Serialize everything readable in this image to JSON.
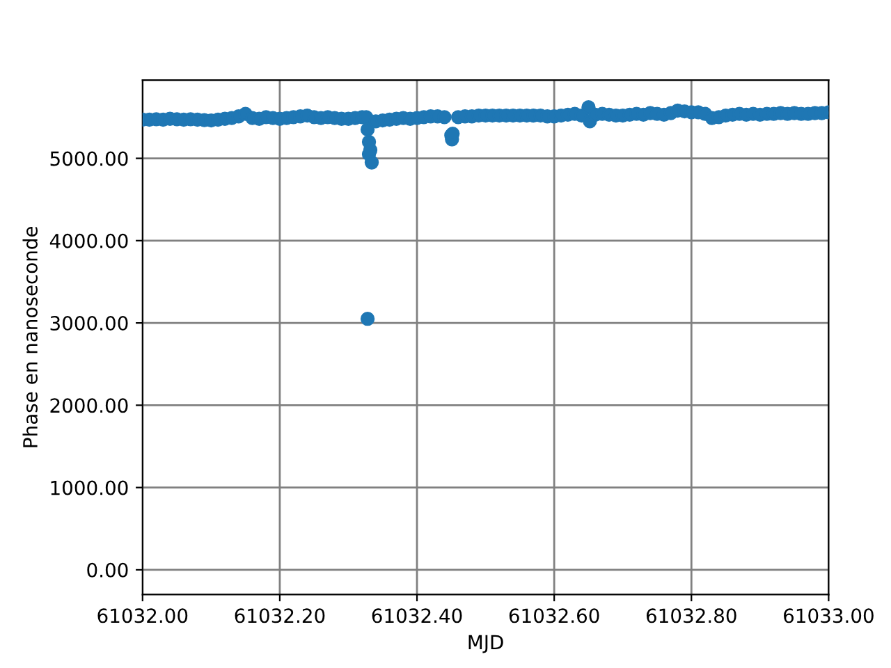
{
  "chart_data": {
    "type": "scatter",
    "xlabel": "MJD",
    "ylabel": "Phase en nanoseconde",
    "xlim": [
      61032.0,
      61033.0
    ],
    "ylim": [
      -300,
      5950
    ],
    "xticks": [
      {
        "value": 61032.0,
        "label": "61032.00"
      },
      {
        "value": 61032.2,
        "label": "61032.20"
      },
      {
        "value": 61032.4,
        "label": "61032.40"
      },
      {
        "value": 61032.6,
        "label": "61032.60"
      },
      {
        "value": 61032.8,
        "label": "61032.80"
      },
      {
        "value": 61033.0,
        "label": "61033.00"
      }
    ],
    "yticks": [
      {
        "value": 0,
        "label": "0.00"
      },
      {
        "value": 1000,
        "label": "1000.00"
      },
      {
        "value": 2000,
        "label": "2000.00"
      },
      {
        "value": 3000,
        "label": "3000.00"
      },
      {
        "value": 4000,
        "label": "4000.00"
      },
      {
        "value": 5000,
        "label": "5000.00"
      }
    ],
    "grid": true,
    "marker": "circle",
    "series": [
      {
        "color": "#1f77b4",
        "x": [
          61032.0,
          61032.01,
          61032.02,
          61032.03,
          61032.04,
          61032.05,
          61032.06,
          61032.07,
          61032.08,
          61032.09,
          61032.1,
          61032.11,
          61032.12,
          61032.13,
          61032.14,
          61032.15,
          61032.16,
          61032.17,
          61032.18,
          61032.19,
          61032.2,
          61032.21,
          61032.22,
          61032.23,
          61032.24,
          61032.25,
          61032.26,
          61032.27,
          61032.28,
          61032.29,
          61032.3,
          61032.31,
          61032.32,
          61032.326,
          61032.328,
          61032.33,
          61032.33,
          61032.332,
          61032.334,
          61032.328,
          61032.34,
          61032.35,
          61032.36,
          61032.37,
          61032.38,
          61032.39,
          61032.4,
          61032.41,
          61032.42,
          61032.43,
          61032.44,
          61032.45,
          61032.451,
          61032.452,
          61032.46,
          61032.47,
          61032.48,
          61032.49,
          61032.5,
          61032.51,
          61032.52,
          61032.53,
          61032.54,
          61032.55,
          61032.56,
          61032.57,
          61032.58,
          61032.59,
          61032.6,
          61032.61,
          61032.62,
          61032.63,
          61032.64,
          61032.65,
          61032.652,
          61032.66,
          61032.67,
          61032.68,
          61032.69,
          61032.7,
          61032.71,
          61032.72,
          61032.73,
          61032.74,
          61032.75,
          61032.76,
          61032.77,
          61032.78,
          61032.79,
          61032.8,
          61032.81,
          61032.82,
          61032.83,
          61032.84,
          61032.85,
          61032.86,
          61032.87,
          61032.88,
          61032.89,
          61032.9,
          61032.91,
          61032.92,
          61032.93,
          61032.94,
          61032.95,
          61032.96,
          61032.97,
          61032.98,
          61032.99,
          61033.0
        ],
        "values": [
          5470,
          5470,
          5475,
          5470,
          5480,
          5475,
          5470,
          5475,
          5470,
          5465,
          5460,
          5470,
          5480,
          5490,
          5510,
          5540,
          5490,
          5480,
          5500,
          5490,
          5480,
          5490,
          5500,
          5510,
          5520,
          5500,
          5490,
          5500,
          5490,
          5480,
          5480,
          5490,
          5500,
          5500,
          5350,
          5200,
          5050,
          5100,
          4950,
          3050,
          5450,
          5460,
          5470,
          5480,
          5490,
          5480,
          5490,
          5500,
          5510,
          5510,
          5500,
          5280,
          5230,
          5300,
          5500,
          5510,
          5510,
          5520,
          5520,
          5520,
          5520,
          5520,
          5520,
          5520,
          5520,
          5520,
          5520,
          5510,
          5510,
          5520,
          5530,
          5540,
          5520,
          5620,
          5450,
          5530,
          5540,
          5530,
          5520,
          5520,
          5530,
          5540,
          5530,
          5550,
          5540,
          5530,
          5550,
          5580,
          5570,
          5560,
          5560,
          5540,
          5490,
          5500,
          5520,
          5530,
          5540,
          5530,
          5540,
          5530,
          5540,
          5540,
          5550,
          5540,
          5550,
          5540,
          5540,
          5550,
          5550,
          5560
        ]
      }
    ]
  }
}
